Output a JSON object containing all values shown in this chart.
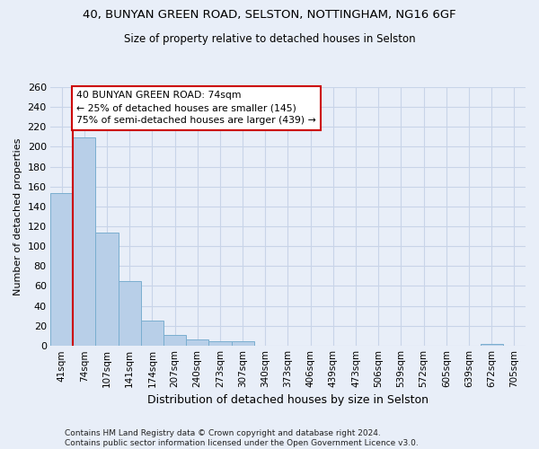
{
  "title_line1": "40, BUNYAN GREEN ROAD, SELSTON, NOTTINGHAM, NG16 6GF",
  "title_line2": "Size of property relative to detached houses in Selston",
  "xlabel": "Distribution of detached houses by size in Selston",
  "ylabel": "Number of detached properties",
  "footer": "Contains HM Land Registry data © Crown copyright and database right 2024.\nContains public sector information licensed under the Open Government Licence v3.0.",
  "bar_labels": [
    "41sqm",
    "74sqm",
    "107sqm",
    "141sqm",
    "174sqm",
    "207sqm",
    "240sqm",
    "273sqm",
    "307sqm",
    "340sqm",
    "373sqm",
    "406sqm",
    "439sqm",
    "473sqm",
    "506sqm",
    "539sqm",
    "572sqm",
    "605sqm",
    "639sqm",
    "672sqm",
    "705sqm"
  ],
  "bar_values": [
    153,
    209,
    114,
    65,
    25,
    11,
    6,
    4,
    4,
    0,
    0,
    0,
    0,
    0,
    0,
    0,
    0,
    0,
    0,
    2,
    0
  ],
  "bar_color": "#b8cfe8",
  "bar_edge_color": "#7aaed0",
  "grid_color": "#c8d4e8",
  "bg_color": "#e8eef8",
  "vline_color": "#cc0000",
  "annotation_text": "40 BUNYAN GREEN ROAD: 74sqm\n← 25% of detached houses are smaller (145)\n75% of semi-detached houses are larger (439) →",
  "annotation_box_color": "white",
  "annotation_box_edge": "#cc0000",
  "ylim": [
    0,
    260
  ],
  "yticks": [
    0,
    20,
    40,
    60,
    80,
    100,
    120,
    140,
    160,
    180,
    200,
    220,
    240,
    260
  ],
  "title1_fontsize": 9.5,
  "title2_fontsize": 8.5,
  "xlabel_fontsize": 9,
  "ylabel_fontsize": 8,
  "tick_fontsize": 8,
  "footer_fontsize": 6.5
}
